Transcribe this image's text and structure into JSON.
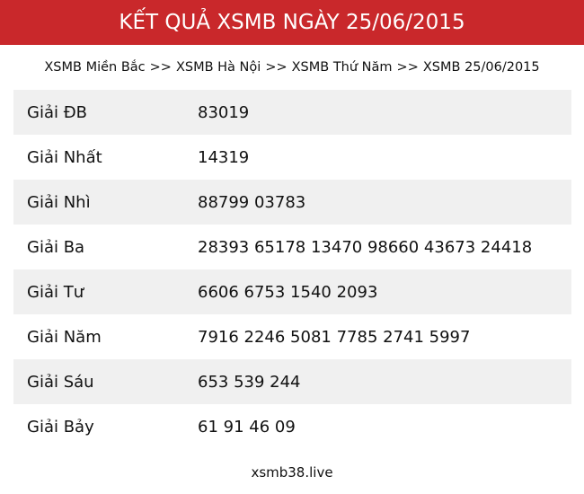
{
  "header": {
    "title": "KẾT QUẢ XSMB NGÀY 25/06/2015"
  },
  "breadcrumb": {
    "items": [
      "XSMB Miền Bắc",
      "XSMB Hà Nội",
      "XSMB Thứ Năm",
      "XSMB 25/06/2015"
    ],
    "separator": ">>"
  },
  "results": [
    {
      "label": "Giải ĐB",
      "value": "83019"
    },
    {
      "label": "Giải Nhất",
      "value": "14319"
    },
    {
      "label": "Giải Nhì",
      "value": "88799 03783"
    },
    {
      "label": "Giải Ba",
      "value": "28393 65178 13470 98660 43673 24418"
    },
    {
      "label": "Giải Tư",
      "value": "6606 6753 1540 2093"
    },
    {
      "label": "Giải Năm",
      "value": "7916 2246 5081 7785 2741 5997"
    },
    {
      "label": "Giải Sáu",
      "value": "653 539 244"
    },
    {
      "label": "Giải Bảy",
      "value": "61 91 46 09"
    }
  ],
  "footer": {
    "site": "xsmb38.live"
  },
  "colors": {
    "header_bg": "#c9282b",
    "row_alt_bg": "#f0f0f0"
  }
}
